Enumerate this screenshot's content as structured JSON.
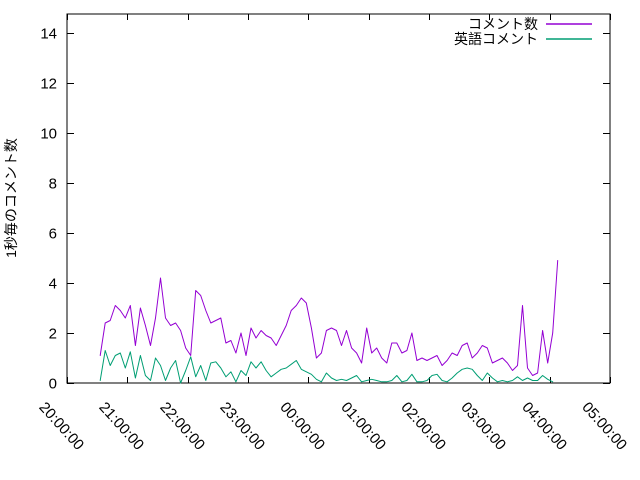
{
  "chart_data": {
    "type": "line",
    "title": "",
    "xlabel": "",
    "ylabel": "1秒毎のコメント数",
    "ylim": [
      0,
      14.8
    ],
    "yticks": [
      0,
      2,
      4,
      6,
      8,
      10,
      12,
      14
    ],
    "xtick_labels": [
      "20:00:00",
      "21:00:00",
      "22:00:00",
      "23:00:00",
      "00:00:00",
      "01:00:00",
      "02:00:00",
      "03:00:00",
      "04:00:00",
      "05:00:00"
    ],
    "x_axis_total_minutes": 540,
    "grid": false,
    "legend_position": "top-right-inside",
    "data_start_offset_minutes": 33,
    "data_step_minutes": 5,
    "series": [
      {
        "name": "コメント数",
        "color": "#9400d3",
        "values": [
          1.1,
          2.4,
          2.5,
          3.1,
          2.9,
          2.6,
          3.1,
          1.5,
          3.0,
          2.3,
          1.5,
          2.6,
          4.2,
          2.6,
          2.3,
          2.4,
          2.1,
          1.4,
          1.1,
          3.7,
          3.5,
          2.9,
          2.4,
          2.5,
          2.6,
          1.6,
          1.7,
          1.2,
          2.0,
          1.1,
          2.2,
          1.8,
          2.1,
          1.9,
          1.8,
          1.5,
          1.9,
          2.3,
          2.9,
          3.1,
          3.4,
          3.2,
          2.2,
          1.0,
          1.2,
          2.1,
          2.2,
          2.1,
          1.5,
          2.1,
          1.4,
          1.2,
          0.8,
          2.2,
          1.2,
          1.4,
          1.0,
          0.8,
          1.6,
          1.6,
          1.2,
          1.3,
          2.0,
          0.9,
          1.0,
          0.9,
          1.0,
          1.1,
          0.7,
          0.9,
          1.2,
          1.1,
          1.5,
          1.6,
          1.0,
          1.2,
          1.5,
          1.4,
          0.8,
          0.9,
          1.0,
          0.8,
          0.5,
          0.7,
          3.1,
          0.6,
          0.3,
          0.4,
          2.1,
          0.8,
          2.0,
          4.9
        ]
      },
      {
        "name": "英語コメント",
        "color": "#009e73",
        "values": [
          0.1,
          1.3,
          0.7,
          1.1,
          1.2,
          0.6,
          1.25,
          0.2,
          1.1,
          0.3,
          0.1,
          1.0,
          0.7,
          0.1,
          0.6,
          0.9,
          0.0,
          0.5,
          1.05,
          0.25,
          0.7,
          0.1,
          0.8,
          0.85,
          0.6,
          0.25,
          0.45,
          0.05,
          0.5,
          0.3,
          0.85,
          0.6,
          0.85,
          0.5,
          0.25,
          0.4,
          0.55,
          0.6,
          0.75,
          0.9,
          0.55,
          0.45,
          0.35,
          0.15,
          0.05,
          0.4,
          0.2,
          0.1,
          0.15,
          0.1,
          0.2,
          0.3,
          0.05,
          0.1,
          0.15,
          0.1,
          0.05,
          0.05,
          0.1,
          0.3,
          0.05,
          0.1,
          0.35,
          0.05,
          0.05,
          0.1,
          0.3,
          0.35,
          0.1,
          0.05,
          0.2,
          0.4,
          0.55,
          0.6,
          0.55,
          0.3,
          0.1,
          0.4,
          0.2,
          0.05,
          0.1,
          0.05,
          0.1,
          0.25,
          0.1,
          0.2,
          0.1,
          0.1,
          0.3,
          0.15,
          0.05,
          null
        ]
      }
    ],
    "colors": {
      "background": "#ffffff",
      "axis": "#000000",
      "text": "#000000"
    }
  }
}
